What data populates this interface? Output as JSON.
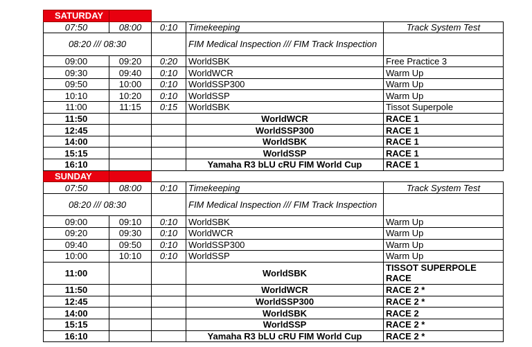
{
  "days": [
    {
      "name": "SATURDAY",
      "rows": [
        {
          "start": "07:50",
          "end": "08:00",
          "dur": "0:10",
          "series": "Timekeeping",
          "session": "Track System Test",
          "style": "italic"
        },
        {
          "start": "08:20 /// 08:30",
          "end": "",
          "dur": "",
          "series": "FIM Medical Inspection /// FIM Track Inspection",
          "session": "",
          "style": "italic-merged"
        },
        {
          "start": "09:00",
          "end": "09:20",
          "dur": "0:20",
          "series": "WorldSBK",
          "session": "Free Practice 3",
          "style": "normal"
        },
        {
          "start": "09:30",
          "end": "09:40",
          "dur": "0:10",
          "series": "WorldWCR",
          "session": "Warm Up",
          "style": "normal"
        },
        {
          "start": "09:50",
          "end": "10:00",
          "dur": "0:10",
          "series": "WorldSSP300",
          "session": "Warm Up",
          "style": "normal"
        },
        {
          "start": "10:10",
          "end": "10:20",
          "dur": "0:10",
          "series": "WorldSSP",
          "session": "Warm Up",
          "style": "normal"
        },
        {
          "start": "11:00",
          "end": "11:15",
          "dur": "0:15",
          "series": "WorldSBK",
          "session": "Tissot Superpole",
          "style": "normal"
        },
        {
          "start": "11:50",
          "end": "",
          "dur": "",
          "series": "WorldWCR",
          "session": "RACE 1",
          "style": "bold"
        },
        {
          "start": "12:45",
          "end": "",
          "dur": "",
          "series": "WorldSSP300",
          "session": "RACE 1",
          "style": "bold"
        },
        {
          "start": "14:00",
          "end": "",
          "dur": "",
          "series": "WorldSBK",
          "session": "RACE 1",
          "style": "bold"
        },
        {
          "start": "15:15",
          "end": "",
          "dur": "",
          "series": "WorldSSP",
          "session": "RACE 1",
          "style": "bold"
        },
        {
          "start": "16:10",
          "end": "",
          "dur": "",
          "series": "Yamaha R3 bLU cRU FIM World Cup",
          "session": "RACE 1",
          "style": "bold"
        }
      ]
    },
    {
      "name": "SUNDAY",
      "rows": [
        {
          "start": "07:50",
          "end": "08:00",
          "dur": "0:10",
          "series": "Timekeeping",
          "session": "Track System Test",
          "style": "italic"
        },
        {
          "start": "08:20 /// 08:30",
          "end": "",
          "dur": "",
          "series": "FIM Medical Inspection /// FIM Track Inspection",
          "session": "",
          "style": "italic-merged"
        },
        {
          "start": "09:00",
          "end": "09:10",
          "dur": "0:10",
          "series": "WorldSBK",
          "session": "Warm Up",
          "style": "normal"
        },
        {
          "start": "09:20",
          "end": "09:30",
          "dur": "0:10",
          "series": "WorldWCR",
          "session": "Warm Up",
          "style": "normal"
        },
        {
          "start": "09:40",
          "end": "09:50",
          "dur": "0:10",
          "series": "WorldSSP300",
          "session": "Warm Up",
          "style": "normal"
        },
        {
          "start": "10:00",
          "end": "10:10",
          "dur": "0:10",
          "series": "WorldSSP",
          "session": "Warm Up",
          "style": "normal"
        },
        {
          "start": "11:00",
          "end": "",
          "dur": "",
          "series": "WorldSBK",
          "session": "TISSOT SUPERPOLE RACE",
          "style": "bold-tall"
        },
        {
          "start": "11:50",
          "end": "",
          "dur": "",
          "series": "WorldWCR",
          "session": "RACE 2 *",
          "style": "bold"
        },
        {
          "start": "12:45",
          "end": "",
          "dur": "",
          "series": "WorldSSP300",
          "session": "RACE 2 *",
          "style": "bold"
        },
        {
          "start": "14:00",
          "end": "",
          "dur": "",
          "series": "WorldSBK",
          "session": "RACE 2",
          "style": "bold"
        },
        {
          "start": "15:15",
          "end": "",
          "dur": "",
          "series": "WorldSSP",
          "session": "RACE 2 *",
          "style": "bold"
        },
        {
          "start": "16:10",
          "end": "",
          "dur": "",
          "series": "Yamaha R3 bLU cRU FIM World Cup",
          "session": "RACE 2 *",
          "style": "bold"
        }
      ]
    }
  ],
  "colors": {
    "day_header": "#e8000f"
  }
}
